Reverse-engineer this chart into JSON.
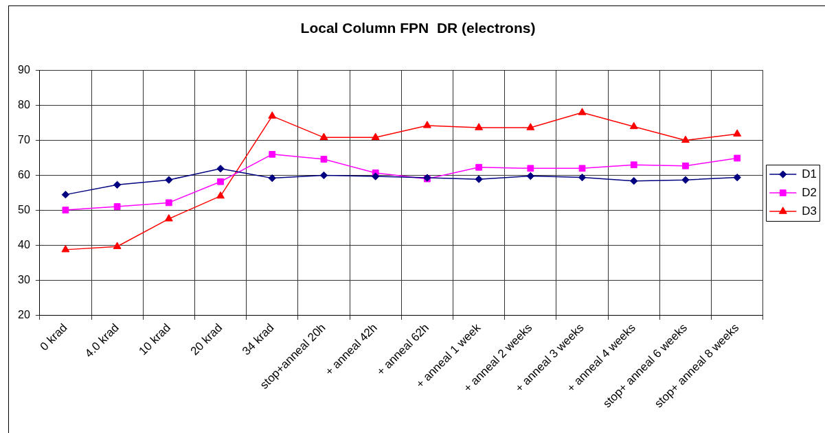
{
  "chart_data": {
    "type": "line",
    "title": "Local Column FPN  DR (electrons)",
    "categories": [
      "0 krad",
      "4.0 krad",
      "10 krad",
      "20 krad",
      "34 krad",
      "stop+anneal 20h",
      "+ anneal 42h",
      "+ anneal 62h",
      "+ anneal 1 week",
      "+ anneal 2 weeks",
      "+ anneal 3 weeks",
      "+ anneal 4 weeks",
      "stop+ anneal 6 weeks",
      "stop+ anneal 8 weeks"
    ],
    "series": [
      {
        "name": "D1",
        "color": "#000080",
        "marker": "diamond",
        "values": [
          54.5,
          57.3,
          58.7,
          61.9,
          59.2,
          60.0,
          59.7,
          59.3,
          58.9,
          59.8,
          59.4,
          58.4,
          58.7,
          59.4
        ]
      },
      {
        "name": "D2",
        "color": "#ff00ff",
        "marker": "square",
        "values": [
          50.1,
          51.1,
          52.2,
          58.2,
          66.0,
          64.6,
          60.7,
          59.0,
          62.3,
          62.0,
          62.0,
          63.0,
          62.7,
          64.9
        ]
      },
      {
        "name": "D3",
        "color": "#ff0000",
        "marker": "triangle",
        "values": [
          38.8,
          39.7,
          47.6,
          54.1,
          76.9,
          70.8,
          70.8,
          74.2,
          73.6,
          73.6,
          77.9,
          73.9,
          70.0,
          71.8
        ]
      }
    ],
    "ylim": [
      20,
      90
    ],
    "yticks": [
      20,
      30,
      40,
      50,
      60,
      70,
      80,
      90
    ],
    "grid": true,
    "legend": "right"
  }
}
